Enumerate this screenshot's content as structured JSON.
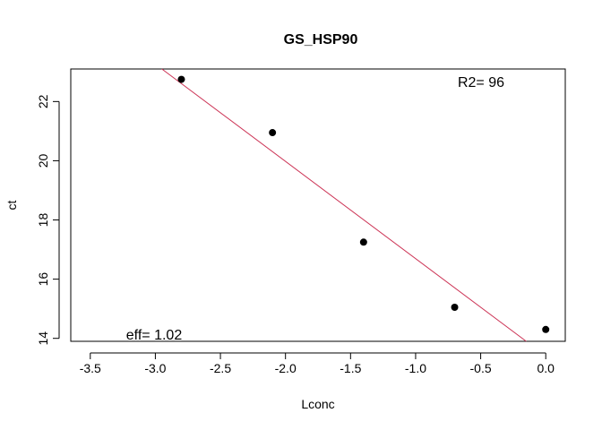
{
  "chart_data": {
    "type": "scatter",
    "title": "GS_HSP90",
    "xlabel": "Lconc",
    "ylabel": "ct",
    "xlim": [
      -3.65,
      0.15
    ],
    "ylim": [
      13.9,
      23.1
    ],
    "xticks": [
      -3.5,
      -3.0,
      -2.5,
      -2.0,
      -1.5,
      -1.0,
      -0.5,
      0.0
    ],
    "xtick_labels": [
      "-3.5",
      "-3.0",
      "-2.5",
      "-2.0",
      "-1.5",
      "-1.0",
      "-0.5",
      "0.0"
    ],
    "yticks": [
      14,
      16,
      18,
      20,
      22
    ],
    "ytick_labels": [
      "14",
      "16",
      "18",
      "20",
      "22"
    ],
    "points": [
      {
        "x": -2.8,
        "y": 22.75
      },
      {
        "x": -2.1,
        "y": 20.95
      },
      {
        "x": -1.4,
        "y": 17.25
      },
      {
        "x": -0.7,
        "y": 15.05
      },
      {
        "x": 0.0,
        "y": 14.3
      }
    ],
    "fit_line": {
      "x": [
        -2.95,
        -0.15
      ],
      "y": [
        23.1,
        13.9
      ],
      "color": "#cc3355"
    },
    "annotations": {
      "r2": "R2= 96",
      "eff": "eff= 1.02"
    },
    "grid": false,
    "point_color": "#000000"
  }
}
